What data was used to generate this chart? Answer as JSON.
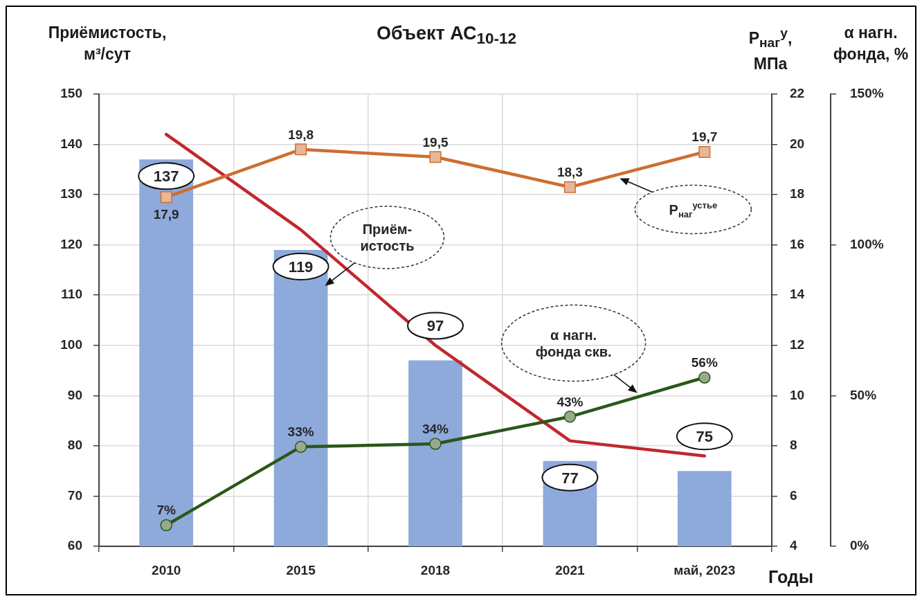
{
  "chart_data": {
    "type": "bar",
    "title": "Объект АС$_{10-12}$",
    "xlabel": "Годы",
    "ylabel": "Приёмистость, м³/сут",
    "y2label": "P$_{наг}$$^{у}$, МПа",
    "y3label": "α нагн. фонда, %",
    "categories": [
      "2010",
      "2015",
      "2018",
      "2021",
      "май, 2023"
    ],
    "series": [
      {
        "name": "Приём-истость",
        "color": "#8eaadb",
        "values": [
          137,
          119,
          97,
          77,
          75
        ],
        "value_labels": [
          "137",
          "119",
          "97",
          "77",
          "75"
        ]
      },
      {
        "type": "line",
        "color": "#c1272d",
        "values": [
          142,
          123,
          100,
          81,
          78
        ]
      },
      {
        "name": "P$_{наг}$$^{устье}$",
        "type": "line",
        "axis": "y2",
        "color": "#cd6e32",
        "marker": "square",
        "values": [
          17.9,
          19.8,
          19.5,
          18.3,
          19.7
        ],
        "value_labels": [
          "17,9",
          "19,8",
          "19,5",
          "18,3",
          "19,7"
        ]
      },
      {
        "name": "α нагн. фонда скв.",
        "type": "line",
        "axis": "y3",
        "color": "#2b5719",
        "marker": "circle",
        "values": [
          7,
          33,
          34,
          43,
          56
        ],
        "value_labels": [
          "7%",
          "33%",
          "34%",
          "43%",
          "56%"
        ]
      }
    ],
    "ylim": [
      60,
      150
    ],
    "yticks": [
      60,
      70,
      80,
      90,
      100,
      110,
      120,
      130,
      140,
      150
    ],
    "y2lim": [
      4,
      22
    ],
    "y2ticks": [
      4,
      6,
      8,
      10,
      12,
      14,
      16,
      18,
      20,
      22
    ],
    "y3lim": [
      0,
      150
    ],
    "y3ticks": [
      {
        "value": 0,
        "label": "0%"
      },
      {
        "value": 50,
        "label": "50%"
      },
      {
        "value": 100,
        "label": "100%"
      },
      {
        "value": 150,
        "label": "150%"
      }
    ],
    "grid": true,
    "legend": false
  }
}
